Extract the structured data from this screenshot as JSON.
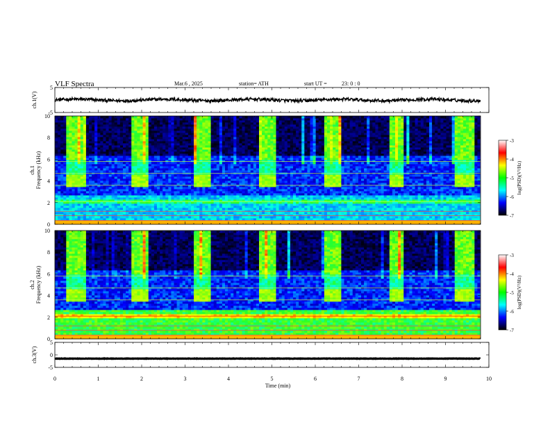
{
  "header": {
    "title": "VLF  Spectra",
    "date": "Mar.6  , 2025",
    "station": "station= ATH",
    "start_label": "start  UT  =",
    "start_time": "23: 0  : 0"
  },
  "chart_data": [
    {
      "type": "line",
      "panel": "ch1-waveform",
      "ylabel": "ch.1(V)",
      "ylim": [
        -5,
        5
      ],
      "ytick_labels": [
        "5",
        "-5"
      ],
      "level": 0,
      "color": "#000000"
    },
    {
      "type": "heatmap",
      "panel": "ch1-spectrogram",
      "ylabel_lines": [
        "ch.1",
        "Frequency  (kHz)"
      ],
      "ylim": [
        0,
        10
      ],
      "ytick_labels": [
        "0",
        "2",
        "4",
        "6",
        "8",
        "10"
      ],
      "burst_intervals_min": [
        [
          0.28,
          0.72
        ],
        [
          1.74,
          2.18
        ],
        [
          3.22,
          3.6
        ],
        [
          4.72,
          5.1
        ],
        [
          6.22,
          6.62
        ],
        [
          7.7,
          8.05
        ],
        [
          9.22,
          9.64
        ]
      ],
      "burst_band_khz": [
        3.4,
        4.6
      ],
      "colorbar": {
        "label": "log(PSD)(V²/Hz)",
        "range": [
          -7,
          -3
        ],
        "tick_labels": [
          "-3",
          "-4",
          "-5",
          "-6",
          "-7"
        ],
        "colors": [
          "#000000",
          "#0000ff",
          "#00ffff",
          "#00ff00",
          "#ffff00",
          "#ff0000",
          "#ffffff"
        ]
      }
    },
    {
      "type": "heatmap",
      "panel": "ch2-spectrogram",
      "ylabel_lines": [
        "ch.2",
        "Frequency  (kHz)"
      ],
      "ylim": [
        0,
        10
      ],
      "ytick_labels": [
        "0",
        "2",
        "4",
        "6",
        "8",
        "10"
      ],
      "burst_intervals_min": [
        [
          0.28,
          0.72
        ],
        [
          1.74,
          2.18
        ],
        [
          3.22,
          3.6
        ],
        [
          4.72,
          5.1
        ],
        [
          6.22,
          6.62
        ],
        [
          7.7,
          8.05
        ],
        [
          9.22,
          9.64
        ]
      ],
      "burst_band_khz": [
        3.4,
        4.6
      ],
      "colorbar": {
        "label": "log(PSD)(V²/Hz)",
        "range": [
          -7,
          -3
        ],
        "tick_labels": [
          "-3",
          "-4",
          "-5",
          "-6",
          "-7"
        ],
        "colors": [
          "#000000",
          "#0000ff",
          "#00ffff",
          "#00ff00",
          "#ffff00",
          "#ff0000",
          "#ffffff"
        ]
      }
    },
    {
      "type": "line",
      "panel": "ch3-waveform",
      "ylabel": "ch.3(V)",
      "ylim": [
        -5,
        5
      ],
      "ytick_labels": [
        "5",
        "0",
        "-5"
      ],
      "level": -1.5,
      "color": "#000000"
    }
  ],
  "xaxis": {
    "label": "Time  (min)",
    "xlim": [
      0,
      10
    ],
    "ticks": [
      0,
      1,
      2,
      3,
      4,
      5,
      6,
      7,
      8,
      9,
      10
    ],
    "data_end_min": 9.8
  }
}
